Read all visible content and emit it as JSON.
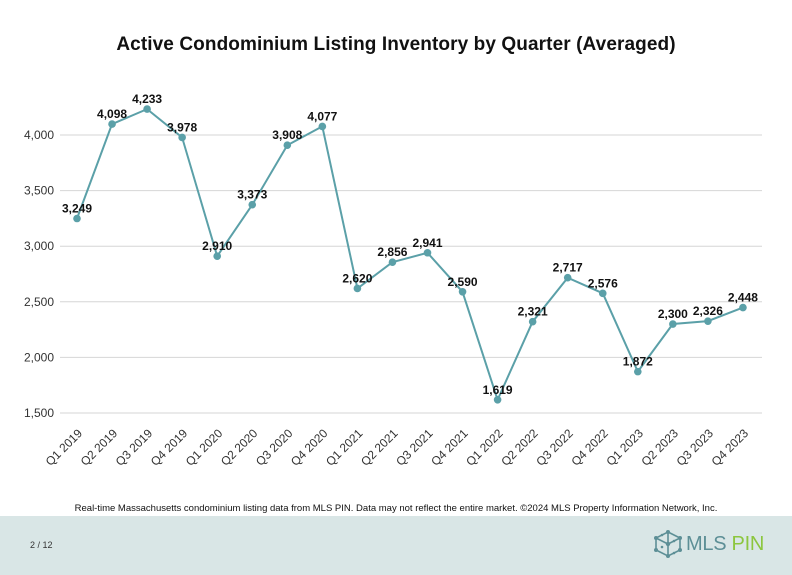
{
  "chart_data": {
    "type": "line",
    "title": "Active Condominium Listing Inventory by Quarter (Averaged)",
    "categories": [
      "Q1 2019",
      "Q2 2019",
      "Q3 2019",
      "Q4 2019",
      "Q1 2020",
      "Q2 2020",
      "Q3 2020",
      "Q4 2020",
      "Q1 2021",
      "Q2 2021",
      "Q3 2021",
      "Q4 2021",
      "Q1 2022",
      "Q2 2022",
      "Q3 2022",
      "Q4 2022",
      "Q1 2023",
      "Q2 2023",
      "Q3 2023",
      "Q4 2023"
    ],
    "values": [
      3249,
      4098,
      4233,
      3978,
      2910,
      3373,
      3908,
      4077,
      2620,
      2856,
      2941,
      2590,
      1619,
      2321,
      2717,
      2576,
      1872,
      2300,
      2326,
      2448
    ],
    "value_labels": [
      "3,249",
      "4,098",
      "4,233",
      "3,978",
      "2,910",
      "3,373",
      "3,908",
      "4,077",
      "2,620",
      "2,856",
      "2,941",
      "2,590",
      "1,619",
      "2,321",
      "2,717",
      "2,576",
      "1,872",
      "2,300",
      "2,326",
      "2,448"
    ],
    "y_ticks": [
      1500,
      2000,
      2500,
      3000,
      3500,
      4000
    ],
    "y_tick_labels": [
      "1,500",
      "2,000",
      "2,500",
      "3,000",
      "3,500",
      "4,000"
    ],
    "ylim": [
      1500,
      4250
    ],
    "xlabel": "",
    "ylabel": "",
    "grid": true,
    "line_color": "#5ba0a8",
    "marker_color": "#5ba0a8"
  },
  "source_note": "Real-time Massachusetts condominium listing data from MLS PIN. Data may not reflect the entire market. ©2024 MLS Property Information Network, Inc.",
  "footer": {
    "page_indicator": "2 / 12",
    "logo_mls": "MLS",
    "logo_pin": "PIN",
    "background": "#d9e6e6"
  }
}
